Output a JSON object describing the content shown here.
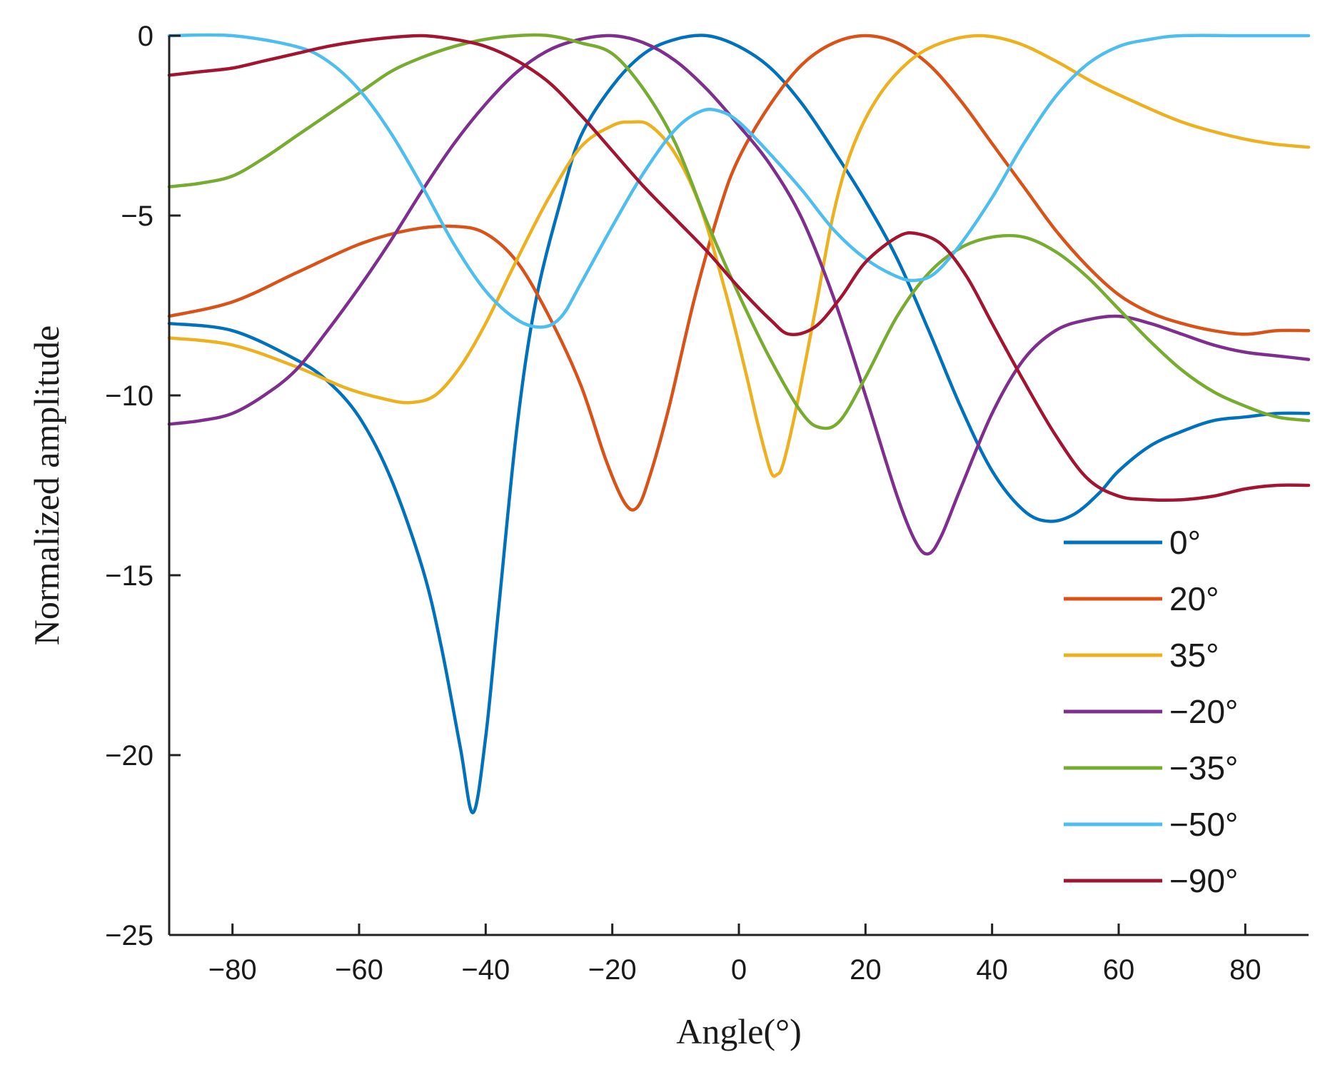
{
  "chart_data": {
    "type": "line",
    "title": "",
    "xlabel": "Angle(°)",
    "ylabel": "Normalized amplitude",
    "xlim": [
      -90,
      90
    ],
    "ylim": [
      -25,
      0
    ],
    "xticks": [
      -80,
      -60,
      -40,
      -20,
      0,
      20,
      40,
      60,
      80
    ],
    "xtick_labels": [
      "−80",
      "−60",
      "−40",
      "−20",
      "0",
      "20",
      "40",
      "60",
      "80"
    ],
    "yticks": [
      0,
      -5,
      -10,
      -15,
      -20,
      -25
    ],
    "ytick_labels": [
      "0",
      "−5",
      "−10",
      "−15",
      "−20",
      "−25"
    ],
    "grid": false,
    "legend_position": "lower-right",
    "series": [
      {
        "name": "0°",
        "color": "#0072BD",
        "points": [
          [
            -90,
            -8
          ],
          [
            -80,
            -8.2
          ],
          [
            -70,
            -9
          ],
          [
            -65,
            -9.6
          ],
          [
            -60,
            -10.6
          ],
          [
            -55,
            -12.3
          ],
          [
            -50,
            -14.8
          ],
          [
            -47,
            -17
          ],
          [
            -44,
            -19.8
          ],
          [
            -42,
            -21.6
          ],
          [
            -40,
            -19.5
          ],
          [
            -38,
            -16
          ],
          [
            -35,
            -10.8
          ],
          [
            -32,
            -7.3
          ],
          [
            -28,
            -4.5
          ],
          [
            -25,
            -2.8
          ],
          [
            -20,
            -1.4
          ],
          [
            -15,
            -0.5
          ],
          [
            -10,
            -0.1
          ],
          [
            -5,
            0
          ],
          [
            0,
            -0.3
          ],
          [
            5,
            -0.9
          ],
          [
            10,
            -1.9
          ],
          [
            15,
            -3.2
          ],
          [
            20,
            -4.6
          ],
          [
            25,
            -6.2
          ],
          [
            30,
            -8.2
          ],
          [
            35,
            -10.3
          ],
          [
            40,
            -12.1
          ],
          [
            45,
            -13.2
          ],
          [
            49,
            -13.5
          ],
          [
            53,
            -13.3
          ],
          [
            57,
            -12.7
          ],
          [
            60,
            -12.1
          ],
          [
            65,
            -11.4
          ],
          [
            70,
            -11
          ],
          [
            75,
            -10.7
          ],
          [
            80,
            -10.6
          ],
          [
            85,
            -10.5
          ],
          [
            90,
            -10.5
          ]
        ]
      },
      {
        "name": "20°",
        "color": "#D95319",
        "points": [
          [
            -90,
            -7.8
          ],
          [
            -80,
            -7.4
          ],
          [
            -70,
            -6.6
          ],
          [
            -60,
            -5.8
          ],
          [
            -52,
            -5.4
          ],
          [
            -45,
            -5.3
          ],
          [
            -40,
            -5.5
          ],
          [
            -35,
            -6.3
          ],
          [
            -30,
            -7.8
          ],
          [
            -25,
            -9.7
          ],
          [
            -21,
            -11.8
          ],
          [
            -18,
            -13
          ],
          [
            -16,
            -13.1
          ],
          [
            -14,
            -12.2
          ],
          [
            -11,
            -10.3
          ],
          [
            -7,
            -7.3
          ],
          [
            -3,
            -4.8
          ],
          [
            0,
            -3.4
          ],
          [
            5,
            -1.9
          ],
          [
            10,
            -0.8
          ],
          [
            15,
            -0.2
          ],
          [
            20,
            0
          ],
          [
            25,
            -0.2
          ],
          [
            30,
            -0.8
          ],
          [
            35,
            -1.8
          ],
          [
            40,
            -3
          ],
          [
            45,
            -4.2
          ],
          [
            50,
            -5.4
          ],
          [
            55,
            -6.4
          ],
          [
            60,
            -7.2
          ],
          [
            65,
            -7.7
          ],
          [
            70,
            -8
          ],
          [
            75,
            -8.2
          ],
          [
            80,
            -8.3
          ],
          [
            85,
            -8.2
          ],
          [
            90,
            -8.2
          ]
        ]
      },
      {
        "name": "35°",
        "color": "#EDB120",
        "points": [
          [
            -90,
            -8.4
          ],
          [
            -80,
            -8.6
          ],
          [
            -70,
            -9.2
          ],
          [
            -62,
            -9.8
          ],
          [
            -56,
            -10.1
          ],
          [
            -52,
            -10.2
          ],
          [
            -48,
            -10
          ],
          [
            -44,
            -9.2
          ],
          [
            -40,
            -8
          ],
          [
            -35,
            -6.2
          ],
          [
            -30,
            -4.5
          ],
          [
            -25,
            -3.1
          ],
          [
            -20,
            -2.5
          ],
          [
            -17,
            -2.4
          ],
          [
            -14,
            -2.5
          ],
          [
            -10,
            -3.3
          ],
          [
            -6,
            -4.8
          ],
          [
            -2,
            -7.2
          ],
          [
            1,
            -9.3
          ],
          [
            3,
            -10.8
          ],
          [
            5,
            -12.1
          ],
          [
            6,
            -12.2
          ],
          [
            7,
            -11.9
          ],
          [
            9,
            -10.4
          ],
          [
            12,
            -7.7
          ],
          [
            15,
            -4.9
          ],
          [
            18,
            -3.1
          ],
          [
            22,
            -1.7
          ],
          [
            27,
            -0.7
          ],
          [
            32,
            -0.2
          ],
          [
            38,
            0
          ],
          [
            44,
            -0.2
          ],
          [
            50,
            -0.7
          ],
          [
            56,
            -1.3
          ],
          [
            62,
            -1.8
          ],
          [
            70,
            -2.4
          ],
          [
            78,
            -2.8
          ],
          [
            84,
            -3
          ],
          [
            90,
            -3.1
          ]
        ]
      },
      {
        "name": "−20°",
        "color": "#7E2F8E",
        "points": [
          [
            -90,
            -10.8
          ],
          [
            -85,
            -10.7
          ],
          [
            -80,
            -10.5
          ],
          [
            -75,
            -10
          ],
          [
            -70,
            -9.3
          ],
          [
            -65,
            -8.2
          ],
          [
            -60,
            -7
          ],
          [
            -55,
            -5.7
          ],
          [
            -50,
            -4.3
          ],
          [
            -45,
            -3
          ],
          [
            -40,
            -1.9
          ],
          [
            -35,
            -1
          ],
          [
            -30,
            -0.4
          ],
          [
            -25,
            -0.1
          ],
          [
            -20,
            0
          ],
          [
            -15,
            -0.2
          ],
          [
            -10,
            -0.7
          ],
          [
            -5,
            -1.5
          ],
          [
            0,
            -2.5
          ],
          [
            5,
            -3.6
          ],
          [
            10,
            -5.1
          ],
          [
            15,
            -7.3
          ],
          [
            20,
            -10
          ],
          [
            25,
            -12.8
          ],
          [
            28,
            -14.1
          ],
          [
            30,
            -14.4
          ],
          [
            32,
            -13.9
          ],
          [
            35,
            -12.6
          ],
          [
            40,
            -10.5
          ],
          [
            45,
            -9
          ],
          [
            50,
            -8.2
          ],
          [
            55,
            -7.9
          ],
          [
            60,
            -7.8
          ],
          [
            65,
            -8
          ],
          [
            70,
            -8.3
          ],
          [
            75,
            -8.6
          ],
          [
            80,
            -8.8
          ],
          [
            85,
            -8.9
          ],
          [
            90,
            -9
          ]
        ]
      },
      {
        "name": "−35°",
        "color": "#77AC30",
        "points": [
          [
            -90,
            -4.2
          ],
          [
            -85,
            -4.1
          ],
          [
            -80,
            -3.9
          ],
          [
            -75,
            -3.4
          ],
          [
            -70,
            -2.8
          ],
          [
            -65,
            -2.2
          ],
          [
            -60,
            -1.6
          ],
          [
            -55,
            -1
          ],
          [
            -50,
            -0.6
          ],
          [
            -45,
            -0.3
          ],
          [
            -40,
            -0.1
          ],
          [
            -35,
            0
          ],
          [
            -30,
            0
          ],
          [
            -25,
            -0.2
          ],
          [
            -20,
            -0.5
          ],
          [
            -15,
            -1.5
          ],
          [
            -10,
            -3
          ],
          [
            -5,
            -5.2
          ],
          [
            0,
            -7.2
          ],
          [
            5,
            -9
          ],
          [
            10,
            -10.5
          ],
          [
            13,
            -10.9
          ],
          [
            16,
            -10.7
          ],
          [
            20,
            -9.5
          ],
          [
            25,
            -7.8
          ],
          [
            30,
            -6.6
          ],
          [
            35,
            -5.9
          ],
          [
            40,
            -5.6
          ],
          [
            45,
            -5.6
          ],
          [
            50,
            -6
          ],
          [
            55,
            -6.7
          ],
          [
            60,
            -7.6
          ],
          [
            65,
            -8.5
          ],
          [
            70,
            -9.3
          ],
          [
            75,
            -9.9
          ],
          [
            80,
            -10.3
          ],
          [
            85,
            -10.6
          ],
          [
            90,
            -10.7
          ]
        ]
      },
      {
        "name": "−50°",
        "color": "#4DBEEE",
        "points": [
          [
            -90,
            0
          ],
          [
            -80,
            0
          ],
          [
            -70,
            -0.3
          ],
          [
            -65,
            -0.7
          ],
          [
            -60,
            -1.5
          ],
          [
            -55,
            -2.7
          ],
          [
            -50,
            -4.2
          ],
          [
            -45,
            -5.8
          ],
          [
            -40,
            -7.1
          ],
          [
            -35,
            -7.9
          ],
          [
            -31,
            -8.1
          ],
          [
            -28,
            -7.8
          ],
          [
            -25,
            -6.9
          ],
          [
            -20,
            -5.3
          ],
          [
            -15,
            -3.8
          ],
          [
            -10,
            -2.6
          ],
          [
            -6,
            -2.1
          ],
          [
            -3,
            -2.1
          ],
          [
            0,
            -2.4
          ],
          [
            5,
            -3.3
          ],
          [
            10,
            -4.3
          ],
          [
            15,
            -5.4
          ],
          [
            20,
            -6.2
          ],
          [
            25,
            -6.7
          ],
          [
            28,
            -6.8
          ],
          [
            31,
            -6.6
          ],
          [
            35,
            -5.8
          ],
          [
            40,
            -4.5
          ],
          [
            45,
            -3
          ],
          [
            50,
            -1.7
          ],
          [
            55,
            -0.8
          ],
          [
            60,
            -0.3
          ],
          [
            65,
            -0.1
          ],
          [
            70,
            0
          ],
          [
            80,
            0
          ],
          [
            90,
            0
          ]
        ]
      },
      {
        "name": "−90°",
        "color": "#A2142F",
        "points": [
          [
            -90,
            -1.1
          ],
          [
            -85,
            -1
          ],
          [
            -80,
            -0.9
          ],
          [
            -75,
            -0.7
          ],
          [
            -70,
            -0.5
          ],
          [
            -65,
            -0.3
          ],
          [
            -60,
            -0.15
          ],
          [
            -55,
            -0.05
          ],
          [
            -50,
            0
          ],
          [
            -45,
            -0.1
          ],
          [
            -40,
            -0.3
          ],
          [
            -35,
            -0.7
          ],
          [
            -30,
            -1.3
          ],
          [
            -25,
            -2.2
          ],
          [
            -20,
            -3.2
          ],
          [
            -15,
            -4.2
          ],
          [
            -10,
            -5.1
          ],
          [
            -5,
            -6
          ],
          [
            0,
            -7
          ],
          [
            5,
            -7.9
          ],
          [
            8,
            -8.3
          ],
          [
            12,
            -8.1
          ],
          [
            16,
            -7.3
          ],
          [
            20,
            -6.3
          ],
          [
            25,
            -5.6
          ],
          [
            28,
            -5.5
          ],
          [
            32,
            -5.8
          ],
          [
            36,
            -6.7
          ],
          [
            40,
            -8
          ],
          [
            45,
            -9.6
          ],
          [
            50,
            -11.1
          ],
          [
            55,
            -12.3
          ],
          [
            60,
            -12.8
          ],
          [
            65,
            -12.9
          ],
          [
            70,
            -12.9
          ],
          [
            75,
            -12.8
          ],
          [
            80,
            -12.6
          ],
          [
            85,
            -12.5
          ],
          [
            90,
            -12.5
          ]
        ]
      }
    ]
  }
}
